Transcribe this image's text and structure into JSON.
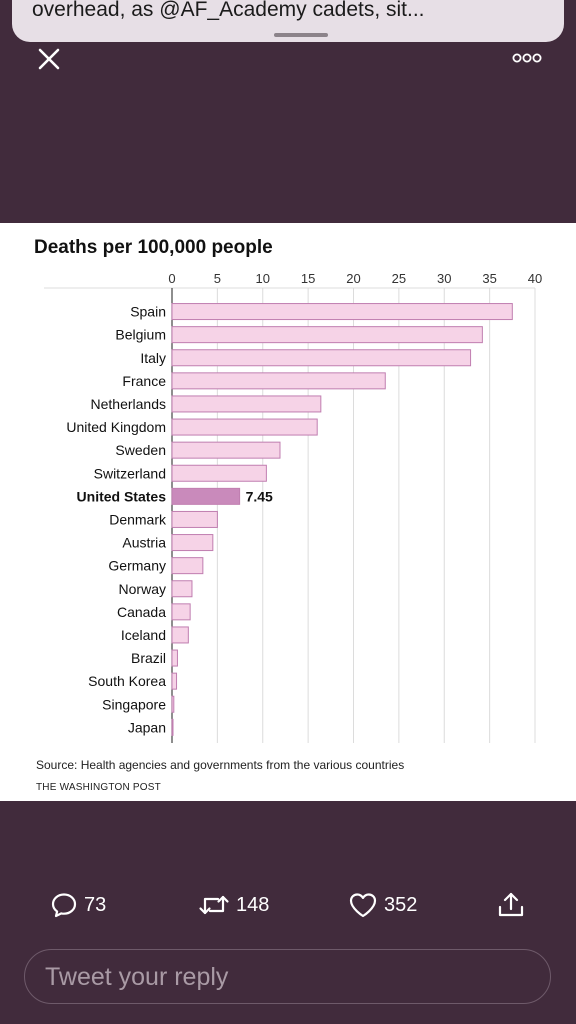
{
  "banner": {
    "text": "overhead, as @AF_Academy cadets, sit..."
  },
  "icons": {
    "close": "close-icon",
    "more": "more-options-icon",
    "reply": "reply-bubble-icon",
    "retweet": "retweet-icon",
    "like": "heart-icon",
    "share": "share-icon"
  },
  "chart": {
    "title": "Deaths per 100,000 people",
    "source": "Source: Health agencies and governments from the various countries",
    "publisher": "THE WASHINGTON POST"
  },
  "chart_data": {
    "type": "bar",
    "orientation": "horizontal",
    "title": "Deaths per 100,000 people",
    "categories": [
      "Spain",
      "Belgium",
      "Italy",
      "France",
      "Netherlands",
      "United Kingdom",
      "Sweden",
      "Switzerland",
      "United States",
      "Denmark",
      "Austria",
      "Germany",
      "Norway",
      "Canada",
      "Iceland",
      "Brazil",
      "South Korea",
      "Singapore",
      "Japan"
    ],
    "values": [
      37.5,
      34.2,
      32.9,
      23.5,
      16.4,
      16.0,
      11.9,
      10.4,
      7.45,
      5.0,
      4.5,
      3.4,
      2.2,
      2.0,
      1.8,
      0.6,
      0.5,
      0.2,
      0.1
    ],
    "highlight": "United States",
    "highlight_label": "7.45",
    "x_ticks": [
      0,
      5,
      10,
      15,
      20,
      25,
      30,
      35,
      40
    ],
    "xlim": [
      0,
      40
    ],
    "grid": true,
    "colors": {
      "bar": "#f6d3e7",
      "bar_stroke": "#c07eb0",
      "highlight": "#c98abb",
      "grid": "#dcdcdc"
    }
  },
  "actions": {
    "replies": "73",
    "retweets": "148",
    "likes": "352"
  },
  "reply": {
    "placeholder": "Tweet your reply"
  }
}
